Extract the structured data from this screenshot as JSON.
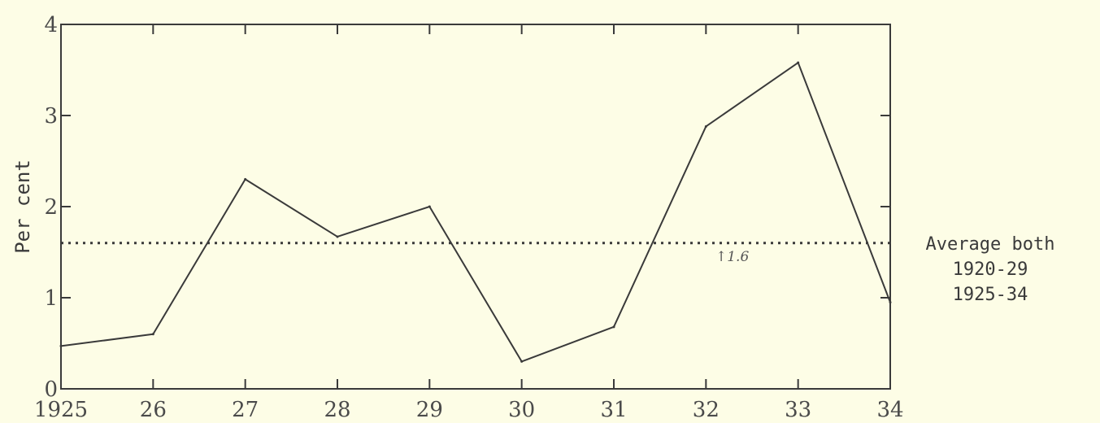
{
  "chart_data": {
    "type": "line",
    "x": [
      "1925",
      "26",
      "27",
      "28",
      "29",
      "30",
      "31",
      "32",
      "33",
      "34"
    ],
    "series": [
      {
        "values": [
          0.47,
          0.6,
          2.3,
          1.67,
          2.0,
          0.3,
          0.68,
          2.88,
          3.58,
          0.95
        ]
      }
    ],
    "ylabel": "Per cent",
    "xlabel": "",
    "ylim": [
      0,
      4
    ],
    "yticks": [
      "0",
      "1",
      "2",
      "3",
      "4"
    ],
    "grid": false,
    "reference_line": {
      "value": 1.6,
      "label_lines": [
        "Average both",
        "1920-29",
        "1925-34"
      ],
      "annotation": "↑1.6"
    },
    "colors": {
      "line": "#3a3a3a",
      "axis": "#3a3a3a",
      "background": "#fdfde6"
    }
  }
}
